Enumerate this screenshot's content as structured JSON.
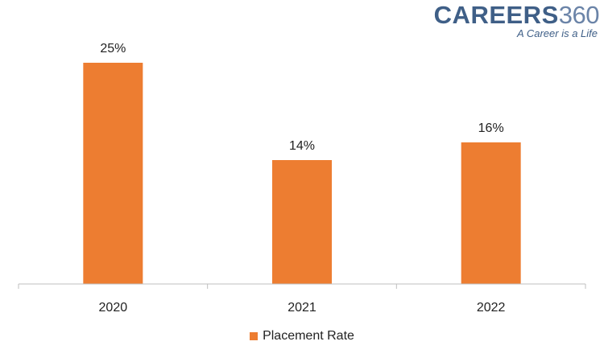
{
  "logo": {
    "word": "CAREERS",
    "number": "360",
    "tagline": "A Career is a Life"
  },
  "colors": {
    "bar": "#ed7d31",
    "axis": "#bfbfbf",
    "text": "#222222",
    "logo": "#3f5f87"
  },
  "chart_data": {
    "type": "bar",
    "categories": [
      "2020",
      "2021",
      "2022"
    ],
    "series": [
      {
        "name": "Placement Rate",
        "values": [
          25,
          14,
          16
        ],
        "labels": [
          "25%",
          "14%",
          "16%"
        ]
      }
    ],
    "ylim": [
      0,
      25
    ],
    "grid": false,
    "legend": "bottom"
  }
}
